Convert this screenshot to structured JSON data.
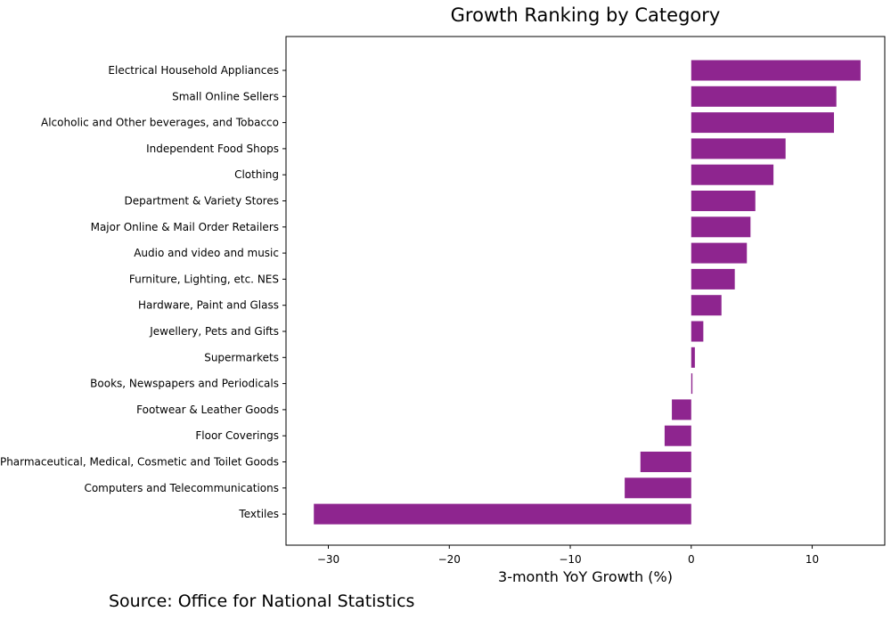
{
  "chart_data": {
    "type": "bar",
    "orientation": "horizontal",
    "title": "Growth Ranking by Category",
    "xlabel": "3-month YoY Growth (%)",
    "ylabel": "",
    "xlim": [
      -33.5,
      16.0
    ],
    "xticks": [
      -30,
      -20,
      -10,
      0,
      10
    ],
    "xtick_labels": [
      "−30",
      "−20",
      "−10",
      "0",
      "10"
    ],
    "categories": [
      "Electrical Household Appliances",
      "Small Online Sellers",
      "Alcoholic and Other beverages, and Tobacco",
      "Independent Food Shops",
      "Clothing",
      "Department & Variety Stores",
      "Major Online & Mail Order Retailers",
      "Audio and video and music",
      "Furniture, Lighting, etc. NES",
      "Hardware, Paint and Glass",
      "Jewellery, Pets and Gifts",
      "Supermarkets",
      "Books, Newspapers and Periodicals",
      "Footwear & Leather Goods",
      "Floor Coverings",
      "Pharmaceutical, Medical, Cosmetic and Toilet Goods",
      "Computers and Telecommunications",
      "Textiles"
    ],
    "values": [
      14.0,
      12.0,
      11.8,
      7.8,
      6.8,
      5.3,
      4.9,
      4.6,
      3.6,
      2.5,
      1.0,
      0.3,
      0.1,
      -1.6,
      -2.2,
      -4.2,
      -5.5,
      -31.2
    ],
    "bar_color": "#8e258f",
    "grid": false
  },
  "source_text": "Source: Office for National Statistics"
}
